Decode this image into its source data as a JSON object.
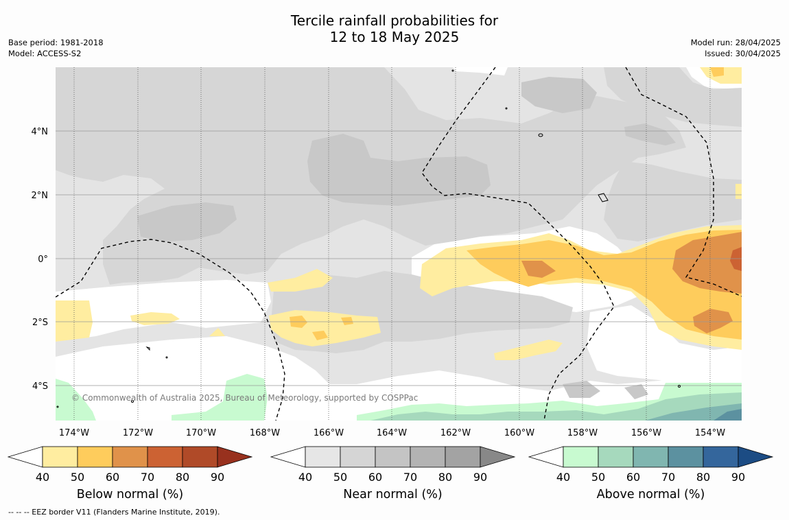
{
  "title_line1": "Tercile rainfall probabilities for",
  "title_line2": "12 to 18 May 2025",
  "base_period": "Base period: 1981-2018",
  "model": "Model: ACCESS-S2",
  "model_run": "Model run: 28/04/2025",
  "issued": "Issued: 30/04/2025",
  "copyright": "© Commonwealth of Australia 2025, Bureau of Meteorology, supported by COSPPac",
  "footnote": "-- -- -- EEZ border V11 (Flanders Marine Institute, 2019).",
  "lon_labels": [
    "174°W",
    "172°W",
    "170°W",
    "168°W",
    "166°W",
    "164°W",
    "162°W",
    "160°W",
    "158°W",
    "156°W",
    "154°W"
  ],
  "lat_labels": [
    "4°N",
    "2°N",
    "0°",
    "2°S",
    "4°S"
  ],
  "colorbars": [
    {
      "title": "Below normal (%)",
      "ticks": [
        "40",
        "50",
        "60",
        "70",
        "80",
        "90"
      ],
      "colors": [
        "#ffeda0",
        "#fecc5c",
        "#e0924a",
        "#cc6233",
        "#b04a28",
        "#98311e"
      ]
    },
    {
      "title": "Near normal (%)",
      "ticks": [
        "40",
        "50",
        "60",
        "70",
        "80",
        "90"
      ],
      "colors": [
        "#e6e6e6",
        "#d5d5d5",
        "#c4c4c4",
        "#b3b3b3",
        "#a3a3a3",
        "#888888"
      ]
    },
    {
      "title": "Above normal (%)",
      "ticks": [
        "40",
        "50",
        "60",
        "70",
        "80",
        "90"
      ],
      "colors": [
        "#c8fad0",
        "#a6d9bd",
        "#80b6b0",
        "#5c91a0",
        "#34669c",
        "#1c4c84"
      ]
    }
  ]
}
